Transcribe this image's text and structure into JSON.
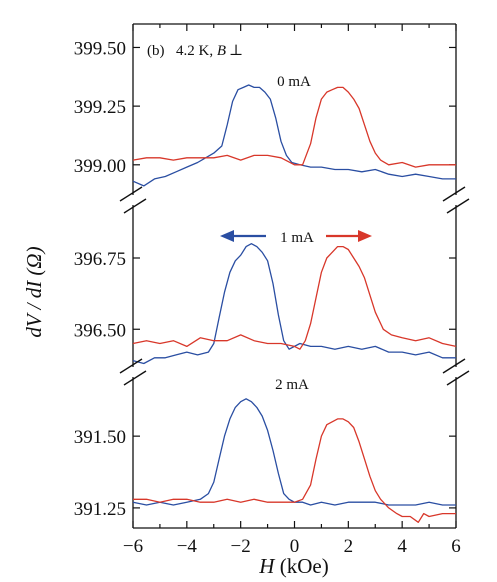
{
  "chart_data": {
    "type": "line",
    "panel_label": "(b)",
    "condition": "4.2 K, ",
    "condition_field": "B",
    "condition_orientation": "⊥",
    "ylabel": "dV / dI (Ω)",
    "xlabel_symbol": "H",
    "xlabel_unit": "(kOe)",
    "xlim": [
      -6,
      6
    ],
    "xticks": [
      -6,
      -4,
      -2,
      0,
      2,
      4,
      6
    ],
    "xtick_labels": [
      "−6",
      "−4",
      "−2",
      "0",
      "2",
      "4",
      "6"
    ],
    "sweep_down_color": "#2a4ea2",
    "sweep_up_color": "#d8372a",
    "panels": [
      {
        "label": "0 mA",
        "ylim": [
          398.85,
          399.6
        ],
        "yticks": [
          399.0,
          399.25,
          399.5
        ],
        "ytick_labels": [
          "399.00",
          "399.25",
          "399.50"
        ],
        "series": [
          {
            "sweep": "down",
            "color": "#2a4ea2",
            "x": [
              -6,
              -5.6,
              -5.2,
              -4.8,
              -4.4,
              -4.0,
              -3.6,
              -3.3,
              -3.0,
              -2.7,
              -2.5,
              -2.3,
              -2.1,
              -1.9,
              -1.7,
              -1.5,
              -1.3,
              -1.1,
              -0.9,
              -0.7,
              -0.5,
              -0.3,
              -0.1,
              0.2,
              0.6,
              1.0,
              1.5,
              2.0,
              2.5,
              3.0,
              3.5,
              4.0,
              4.5,
              5.0,
              5.5,
              6
            ],
            "y": [
              398.93,
              398.91,
              398.94,
              398.95,
              398.97,
              398.99,
              399.01,
              399.03,
              399.05,
              399.08,
              399.17,
              399.27,
              399.32,
              399.33,
              399.34,
              399.33,
              399.33,
              399.31,
              399.28,
              399.2,
              399.1,
              399.04,
              399.01,
              399.0,
              398.99,
              398.99,
              398.98,
              398.98,
              398.97,
              398.98,
              398.96,
              398.95,
              398.96,
              398.95,
              398.94,
              398.94
            ]
          },
          {
            "sweep": "up",
            "color": "#d8372a",
            "x": [
              -6,
              -5.5,
              -5.0,
              -4.5,
              -4.0,
              -3.5,
              -3.0,
              -2.5,
              -2.0,
              -1.5,
              -1.0,
              -0.5,
              0.0,
              0.3,
              0.6,
              0.8,
              1.0,
              1.2,
              1.4,
              1.6,
              1.8,
              2.0,
              2.2,
              2.4,
              2.6,
              2.8,
              3.0,
              3.2,
              3.5,
              4.0,
              4.5,
              5.0,
              5.5,
              6
            ],
            "y": [
              399.02,
              399.03,
              399.03,
              399.02,
              399.03,
              399.03,
              399.03,
              399.04,
              399.02,
              399.04,
              399.04,
              399.03,
              399.0,
              399.0,
              399.09,
              399.2,
              399.28,
              399.31,
              399.32,
              399.33,
              399.33,
              399.31,
              399.28,
              399.24,
              399.17,
              399.1,
              399.05,
              399.02,
              399.0,
              399.01,
              398.99,
              399.0,
              399.0,
              399.0
            ]
          }
        ]
      },
      {
        "label": "1 mA",
        "ylim": [
          396.35,
          396.95
        ],
        "yticks": [
          396.5,
          396.75
        ],
        "ytick_labels": [
          "396.50",
          "396.75"
        ],
        "series": [
          {
            "sweep": "down",
            "color": "#2a4ea2",
            "x": [
              -6,
              -5.6,
              -5.2,
              -4.8,
              -4.4,
              -4.0,
              -3.6,
              -3.2,
              -3.0,
              -2.8,
              -2.6,
              -2.4,
              -2.2,
              -2.0,
              -1.8,
              -1.6,
              -1.4,
              -1.2,
              -1.0,
              -0.8,
              -0.6,
              -0.4,
              -0.2,
              0.2,
              0.6,
              1.0,
              1.5,
              2.0,
              2.5,
              3.0,
              3.5,
              4.0,
              4.5,
              5.0,
              5.5,
              6
            ],
            "y": [
              396.39,
              396.38,
              396.4,
              396.4,
              396.41,
              396.42,
              396.41,
              396.42,
              396.45,
              396.54,
              396.63,
              396.7,
              396.74,
              396.76,
              396.79,
              396.8,
              396.79,
              396.77,
              396.74,
              396.66,
              396.55,
              396.46,
              396.43,
              396.45,
              396.44,
              396.44,
              396.43,
              396.44,
              396.43,
              396.44,
              396.42,
              396.42,
              396.41,
              396.42,
              396.4,
              396.4
            ]
          },
          {
            "sweep": "up",
            "color": "#d8372a",
            "x": [
              -6,
              -5.5,
              -5.0,
              -4.5,
              -4.0,
              -3.5,
              -3.0,
              -2.5,
              -2.0,
              -1.5,
              -1.0,
              -0.5,
              0.0,
              0.2,
              0.4,
              0.6,
              0.8,
              1.0,
              1.2,
              1.4,
              1.6,
              1.8,
              2.0,
              2.2,
              2.4,
              2.6,
              2.8,
              3.0,
              3.3,
              3.6,
              4.0,
              4.5,
              5.0,
              5.5,
              6
            ],
            "y": [
              396.45,
              396.46,
              396.45,
              396.46,
              396.44,
              396.47,
              396.46,
              396.46,
              396.48,
              396.46,
              396.45,
              396.45,
              396.44,
              396.43,
              396.46,
              396.52,
              396.61,
              396.7,
              396.75,
              396.77,
              396.79,
              396.79,
              396.78,
              396.75,
              396.72,
              396.68,
              396.62,
              396.56,
              396.5,
              396.48,
              396.47,
              396.46,
              396.47,
              396.45,
              396.44
            ]
          }
        ]
      },
      {
        "label": "2 mA",
        "ylim": [
          391.18,
          391.72
        ],
        "yticks": [
          391.25,
          391.5
        ],
        "ytick_labels": [
          "391.25",
          "391.50"
        ],
        "series": [
          {
            "sweep": "down",
            "color": "#2a4ea2",
            "x": [
              -6,
              -5.5,
              -5.0,
              -4.5,
              -4.0,
              -3.5,
              -3.2,
              -3.0,
              -2.8,
              -2.6,
              -2.4,
              -2.2,
              -2.0,
              -1.8,
              -1.6,
              -1.4,
              -1.2,
              -1.0,
              -0.8,
              -0.6,
              -0.4,
              -0.2,
              0.0,
              0.3,
              0.6,
              1.0,
              1.5,
              2.0,
              2.5,
              3.0,
              3.5,
              4.0,
              4.5,
              5.0,
              5.5,
              6
            ],
            "y": [
              391.27,
              391.26,
              391.27,
              391.26,
              391.27,
              391.28,
              391.3,
              391.34,
              391.42,
              391.5,
              391.56,
              391.6,
              391.62,
              391.63,
              391.62,
              391.6,
              391.57,
              391.52,
              391.45,
              391.37,
              391.3,
              391.28,
              391.27,
              391.27,
              391.26,
              391.27,
              391.26,
              391.27,
              391.27,
              391.27,
              391.26,
              391.26,
              391.26,
              391.27,
              391.26,
              391.26
            ]
          },
          {
            "sweep": "up",
            "color": "#d8372a",
            "x": [
              -6,
              -5.5,
              -5.0,
              -4.5,
              -4.0,
              -3.5,
              -3.0,
              -2.5,
              -2.0,
              -1.5,
              -1.0,
              -0.5,
              0.0,
              0.3,
              0.6,
              0.8,
              1.0,
              1.2,
              1.4,
              1.6,
              1.8,
              2.0,
              2.2,
              2.4,
              2.6,
              2.8,
              3.0,
              3.2,
              3.5,
              3.8,
              4.0,
              4.3,
              4.6,
              4.8,
              5.0,
              5.5,
              6
            ],
            "y": [
              391.28,
              391.28,
              391.27,
              391.28,
              391.28,
              391.27,
              391.27,
              391.28,
              391.27,
              391.28,
              391.27,
              391.27,
              391.27,
              391.28,
              391.33,
              391.42,
              391.5,
              391.54,
              391.55,
              391.56,
              391.56,
              391.55,
              391.53,
              391.48,
              391.42,
              391.36,
              391.31,
              391.28,
              391.25,
              391.23,
              391.22,
              391.22,
              391.2,
              391.23,
              391.22,
              391.23,
              391.23
            ]
          }
        ]
      }
    ],
    "arrows": [
      {
        "direction": "left",
        "color": "#2a4ea2"
      },
      {
        "direction": "right",
        "color": "#d8372a"
      }
    ]
  }
}
